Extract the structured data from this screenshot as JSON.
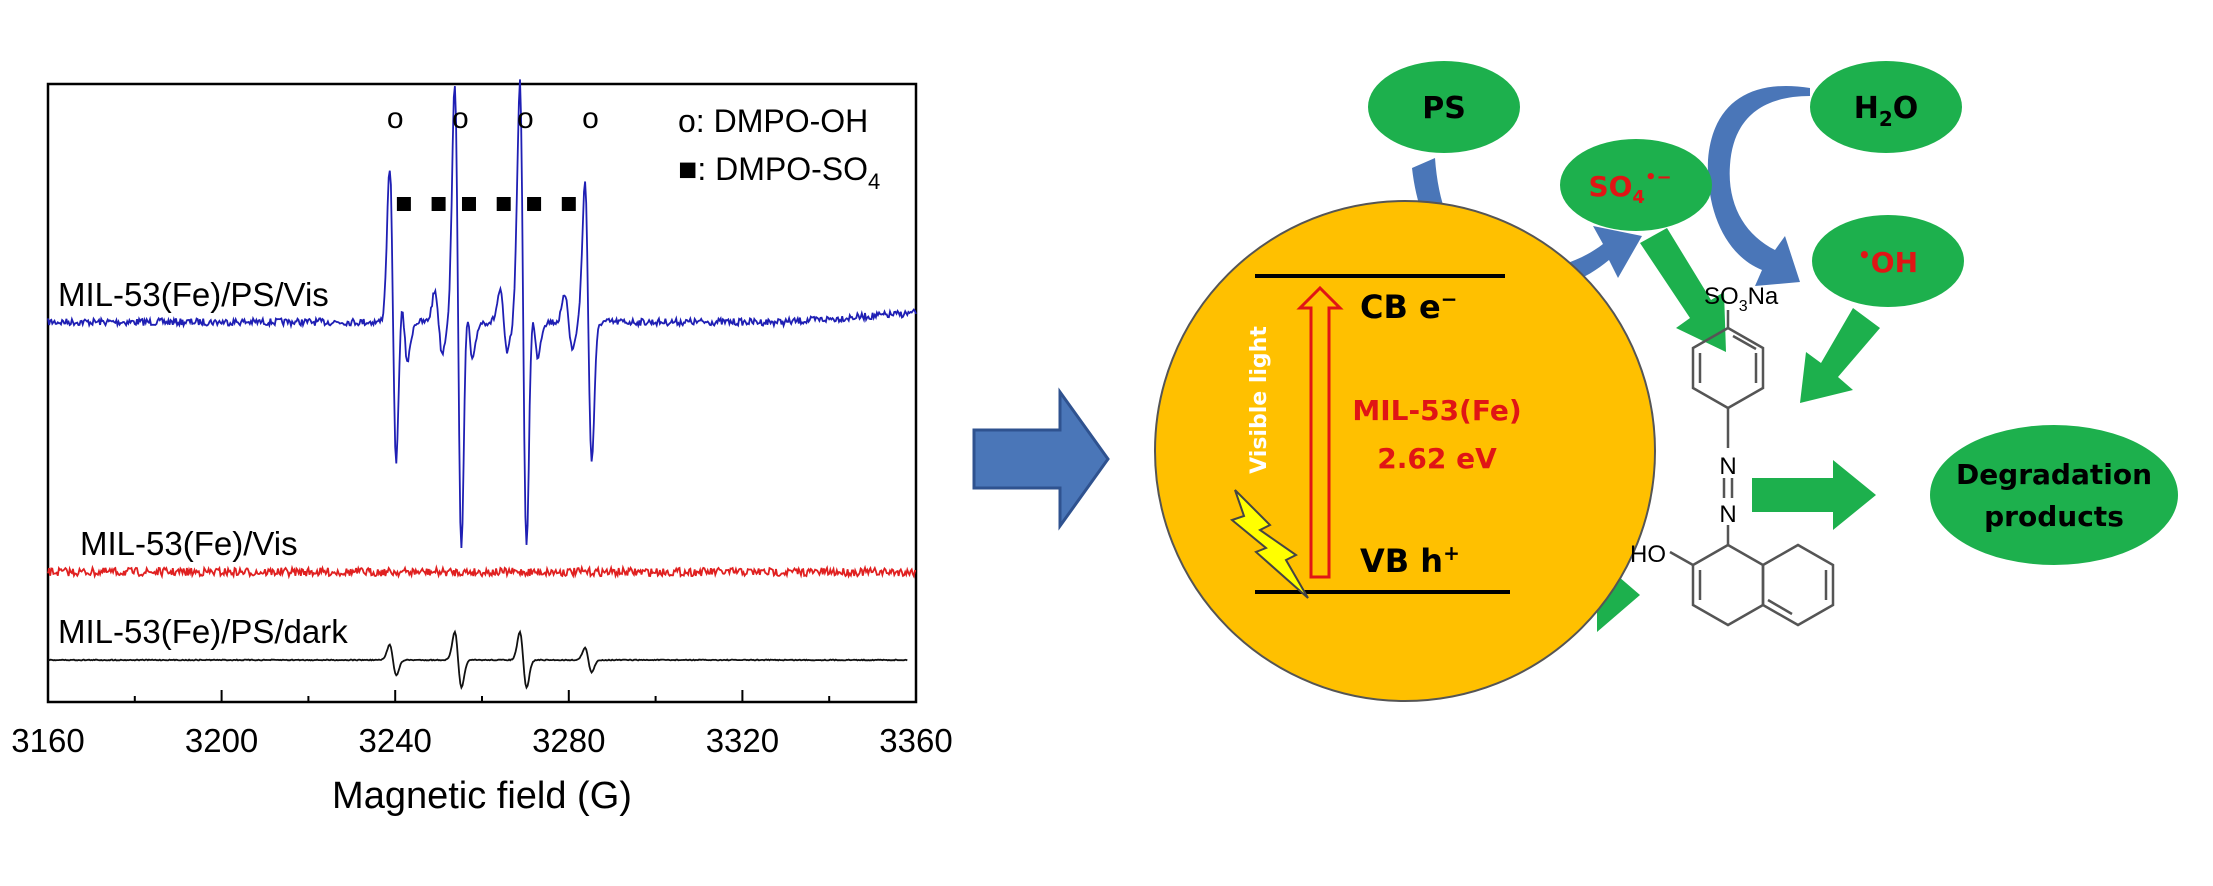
{
  "chart_data": {
    "type": "line",
    "title": "",
    "xlabel": "Magnetic field (G)",
    "ylabel": "",
    "xlim": [
      3160,
      3360
    ],
    "x_ticks": [
      "3160",
      "3200",
      "3240",
      "3280",
      "3320",
      "3360"
    ],
    "grid": false,
    "legend": {
      "placement": "top-right",
      "entries": [
        {
          "marker": "o",
          "label_prefix": "o: ",
          "label": "DMPO-OH"
        },
        {
          "marker": "square",
          "label_prefix": "■: ",
          "label": "DMPO-SO",
          "label_sub": "4"
        }
      ]
    },
    "peak_markers": {
      "hydroxyl_marker_text": "o",
      "hydroxyl_x": [
        3240,
        3255,
        3270,
        3285
      ],
      "sulfate_x": [
        3242,
        3250,
        3257,
        3265,
        3272,
        3280
      ]
    },
    "series": [
      {
        "name": "MIL-53(Fe)/PS/Vis",
        "color": "#1f1fb4",
        "x_start": 3160,
        "x_end": 3360,
        "noise": 1.2,
        "peaks": [
          {
            "x": 3239.5,
            "amp": 1.0,
            "width": 1.1
          },
          {
            "x": 3254.5,
            "amp": 1.55,
            "width": 1.1
          },
          {
            "x": 3269.5,
            "amp": 1.55,
            "width": 1.1
          },
          {
            "x": 3284.5,
            "amp": 0.9,
            "width": 1.1
          },
          {
            "x": 3242,
            "amp": 0.25,
            "width": 1.2
          },
          {
            "x": 3250,
            "amp": 0.2,
            "width": 1.2
          },
          {
            "x": 3257,
            "amp": 0.25,
            "width": 1.2
          },
          {
            "x": 3265,
            "amp": 0.2,
            "width": 1.2
          },
          {
            "x": 3272,
            "amp": 0.22,
            "width": 1.2
          },
          {
            "x": 3280,
            "amp": 0.18,
            "width": 1.2
          }
        ]
      },
      {
        "name": "MIL-53(Fe)/Vis",
        "color": "#e02020",
        "x_start": 3160,
        "x_end": 3360,
        "noise": 1.4,
        "peaks": []
      },
      {
        "name": "MIL-53(Fe)/PS/dark",
        "color": "#111111",
        "x_start": 3160,
        "x_end": 3358,
        "noise": 0.15,
        "peaks": [
          {
            "x": 3239.5,
            "amp": 0.1,
            "width": 1.1
          },
          {
            "x": 3254.5,
            "amp": 0.18,
            "width": 1.1
          },
          {
            "x": 3269.5,
            "amp": 0.18,
            "width": 1.1
          },
          {
            "x": 3284.5,
            "amp": 0.08,
            "width": 1.1
          }
        ]
      }
    ]
  },
  "scheme": {
    "arrow_color": "#4a76b8",
    "green": "#1db04d",
    "circle_color": "#ffc000",
    "nodes": {
      "ps": "PS",
      "h2o_main": "H",
      "h2o_sub": "2",
      "h2o_tail": "O",
      "sulfate_main": "SO",
      "sulfate_sub": "4",
      "sulfate_sup": "•−",
      "hydroxyl_dot": "•",
      "hydroxyl_main": "OH",
      "degradation_line1": "Degradation",
      "degradation_line2": "products"
    },
    "band": {
      "cb_label": "CB e",
      "cb_sup": "−",
      "vb_label": "VB h",
      "vb_sup": "+",
      "material": "MIL-53(Fe)",
      "gap": "2.62 eV",
      "light": "Visible light"
    },
    "molecule": {
      "sulfonate_main": "SO",
      "sulfonate_sub": "3",
      "sulfonate_tail": "Na",
      "azo_n": "N",
      "hydroxy": "HO"
    }
  }
}
